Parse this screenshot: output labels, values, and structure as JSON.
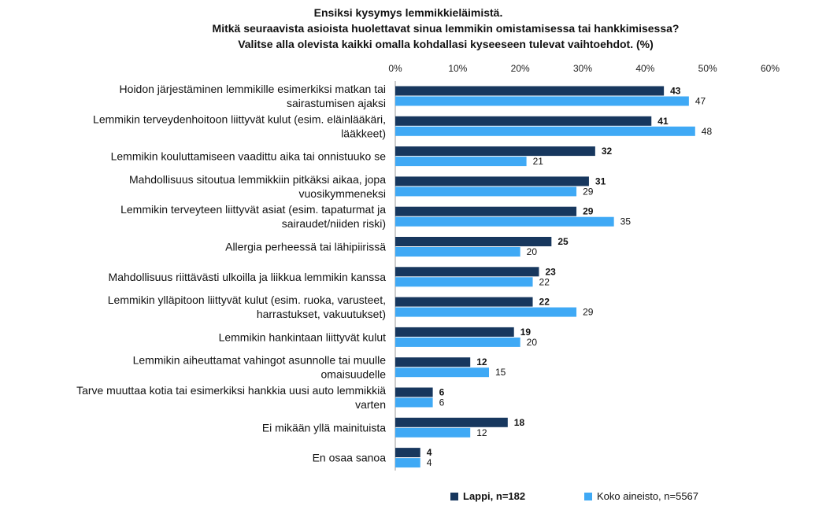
{
  "title_lines": [
    "Ensiksi kysymys  lemmikkieläimistä.",
    "Mitkä seuraavista asioista huolettavat sinua lemmikin omistamisessa tai hankkimisessa?",
    "Valitse alla olevista kaikki omalla kohdallasi kyseeseen tulevat vaihtoehdot. (%)"
  ],
  "chart_data": {
    "type": "bar",
    "orientation": "horizontal",
    "categories": [
      [
        "Hoidon järjestäminen lemmikille esimerkiksi matkan tai",
        "sairastumisen ajaksi"
      ],
      [
        "Lemmikin terveydenhoitoon liittyvät kulut (esim. eläinlääkäri,",
        "lääkkeet)"
      ],
      [
        "Lemmikin kouluttamiseen vaadittu aika tai onnistuuko se"
      ],
      [
        "Mahdollisuus sitoutua lemmikkiin pitkäksi aikaa, jopa",
        "vuosikymmeneksi"
      ],
      [
        "Lemmikin terveyteen liittyvät asiat (esim. tapaturmat ja",
        "sairaudet/niiden riski)"
      ],
      [
        "Allergia perheessä tai lähipiirissä"
      ],
      [
        "Mahdollisuus riittävästi ulkoilla ja liikkua lemmikin kanssa"
      ],
      [
        "Lemmikin ylläpitoon liittyvät kulut (esim. ruoka, varusteet,",
        "harrastukset, vakuutukset)"
      ],
      [
        "Lemmikin hankintaan liittyvät kulut"
      ],
      [
        "Lemmikin aiheuttamat vahingot asunnolle tai muulle",
        "omaisuudelle"
      ],
      [
        "Tarve muuttaa kotia tai esimerkiksi hankkia uusi auto lemmikkiä",
        "varten"
      ],
      [
        "Ei mikään yllä mainituista"
      ],
      [
        "En osaa sanoa"
      ]
    ],
    "series": [
      {
        "name": "Lappi, n=182",
        "color": "#17375e",
        "bold_labels": true,
        "values": [
          43,
          41,
          32,
          31,
          29,
          25,
          23,
          22,
          19,
          12,
          6,
          18,
          4
        ]
      },
      {
        "name": "Koko aineisto, n=5567",
        "color": "#3fa9f5",
        "bold_labels": false,
        "values": [
          47,
          48,
          21,
          29,
          35,
          20,
          22,
          29,
          20,
          15,
          6,
          12,
          4
        ]
      }
    ],
    "x_ticks": [
      "0%",
      "10%",
      "20%",
      "30%",
      "40%",
      "50%",
      "60%"
    ],
    "xlim": [
      0,
      60
    ],
    "axis_position": "top",
    "grid": false,
    "legend_position": "bottom"
  }
}
